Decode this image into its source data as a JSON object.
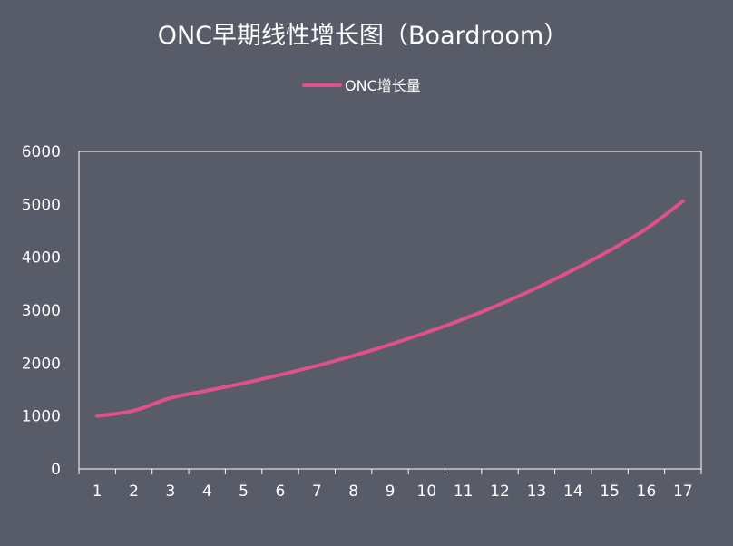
{
  "chart_data": {
    "type": "line",
    "title": "ONC早期线性增长图（Boardroom）",
    "xlabel": "",
    "ylabel": "",
    "categories": [
      "1",
      "2",
      "3",
      "4",
      "5",
      "6",
      "7",
      "8",
      "9",
      "10",
      "11",
      "12",
      "13",
      "14",
      "15",
      "16",
      "17"
    ],
    "series": [
      {
        "name": "ONC增长量",
        "color": "#e0508a",
        "values": [
          1000,
          1100,
          1340,
          1480,
          1620,
          1780,
          1950,
          2140,
          2350,
          2580,
          2830,
          3110,
          3420,
          3760,
          4130,
          4540,
          5060
        ]
      }
    ],
    "ylim": [
      0,
      6000
    ],
    "yticks": [
      0,
      1000,
      2000,
      3000,
      4000,
      5000,
      6000
    ],
    "legend_position": "top-center",
    "grid": false,
    "colors": {
      "background": "#585c69",
      "axis": "#ffffff",
      "text": "#ffffff"
    }
  }
}
